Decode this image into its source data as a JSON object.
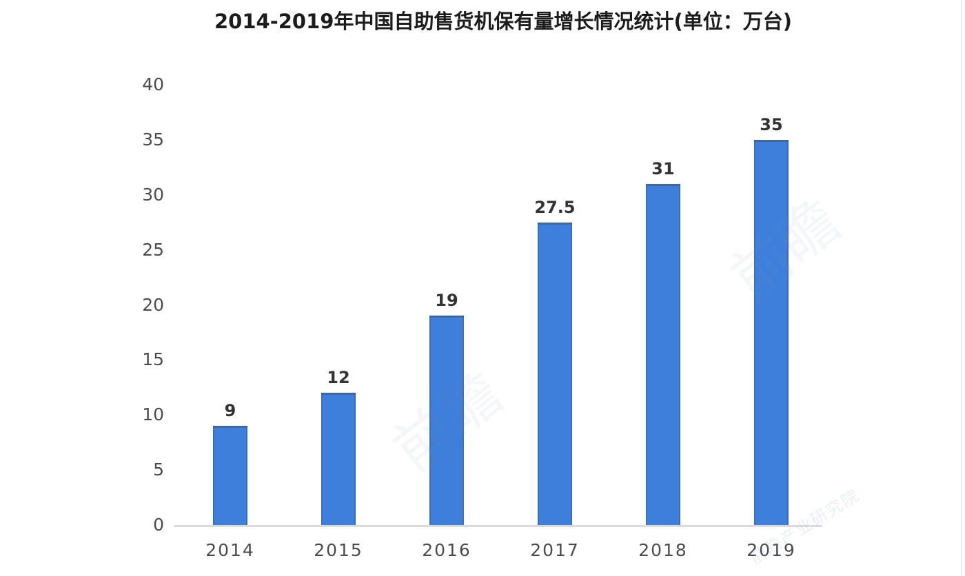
{
  "chart_data": {
    "type": "bar",
    "title": "2014-2019年中国自助售货机保有量增长情况统计(单位：万台)",
    "categories": [
      "2014",
      "2015",
      "2016",
      "2017",
      "2018",
      "2019"
    ],
    "values": [
      9,
      12,
      19,
      27.5,
      31,
      35
    ],
    "value_labels": [
      "9",
      "12",
      "19",
      "27.5",
      "31",
      "35"
    ],
    "ylim": [
      0,
      40
    ],
    "yticks": [
      0,
      5,
      10,
      15,
      20,
      25,
      30,
      35,
      40
    ],
    "grid": false,
    "legend": "none",
    "xlabel": "",
    "ylabel": "",
    "bar_color": "#3E7FDB",
    "axis_line_color": "#DADADA",
    "tick_label_color": "#4B4B4B",
    "value_label_color": "#333333",
    "title_color": "#1C1C1C"
  },
  "watermarks": [
    {
      "text": "前瞻"
    },
    {
      "text": "前瞻"
    },
    {
      "text": "前瞻产业研究院"
    }
  ]
}
